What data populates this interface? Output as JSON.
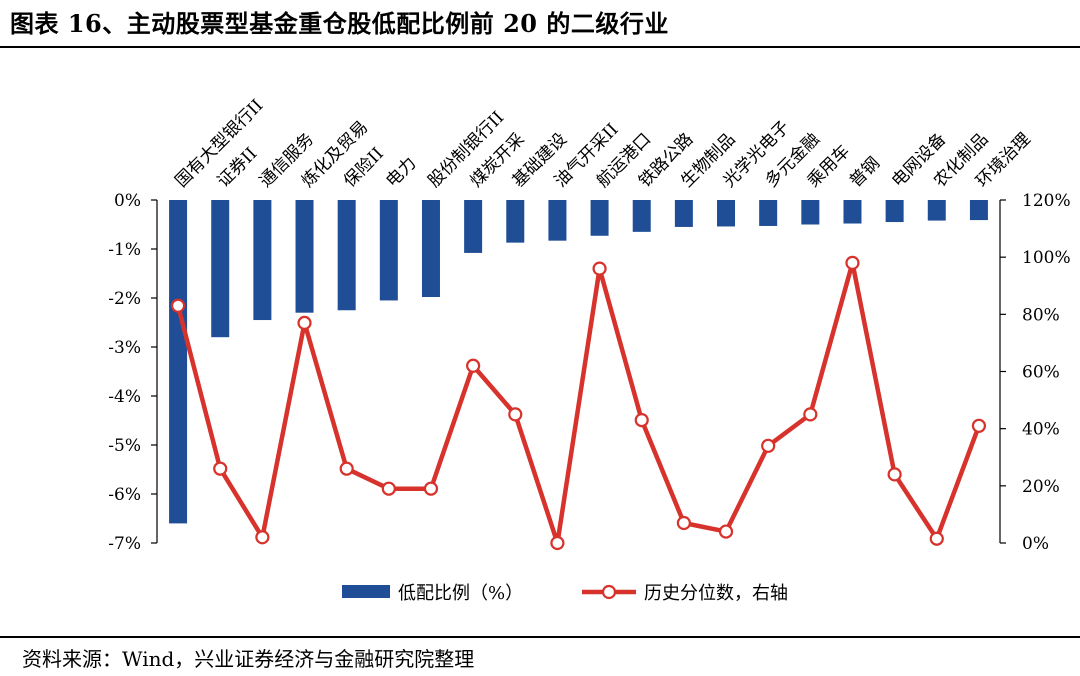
{
  "title": "图表 16、主动股票型基金重仓股低配比例前 20 的二级行业",
  "source": "资料来源：Wind，兴业证券经济与金融研究院整理",
  "colors": {
    "bar": "#1f4e96",
    "line": "#d7322b"
  },
  "chart_data": {
    "type": "bar",
    "categories": [
      "国有大型银行II",
      "证券II",
      "通信服务",
      "炼化及贸易",
      "保险II",
      "电力",
      "股份制银行II",
      "煤炭开采",
      "基础建设",
      "油气开采II",
      "航运港口",
      "铁路公路",
      "生物制品",
      "光学光电子",
      "多元金融",
      "乘用车",
      "普钢",
      "电网设备",
      "农化制品",
      "环境治理"
    ],
    "series": [
      {
        "name": "低配比例（%）",
        "type": "bar",
        "axis": "left",
        "values": [
          -6.6,
          -2.8,
          -2.45,
          -2.3,
          -2.25,
          -2.05,
          -1.98,
          -1.08,
          -0.87,
          -0.83,
          -0.73,
          -0.65,
          -0.55,
          -0.54,
          -0.53,
          -0.5,
          -0.48,
          -0.45,
          -0.42,
          -0.41
        ]
      },
      {
        "name": "历史分位数，右轴",
        "type": "line",
        "axis": "right",
        "values": [
          83,
          26,
          2,
          77,
          26,
          19,
          19,
          62,
          45,
          0,
          96,
          43,
          7,
          4,
          34,
          45,
          98,
          24,
          1.5,
          41
        ]
      }
    ],
    "y_left": {
      "ylim": [
        -7,
        0
      ],
      "ticks": [
        "0%",
        "-1%",
        "-2%",
        "-3%",
        "-4%",
        "-5%",
        "-6%",
        "-7%"
      ]
    },
    "y_right": {
      "ylim": [
        0,
        120
      ],
      "ticks": [
        "120%",
        "100%",
        "80%",
        "60%",
        "40%",
        "20%",
        "0%"
      ]
    },
    "legend_position": "bottom-center"
  }
}
